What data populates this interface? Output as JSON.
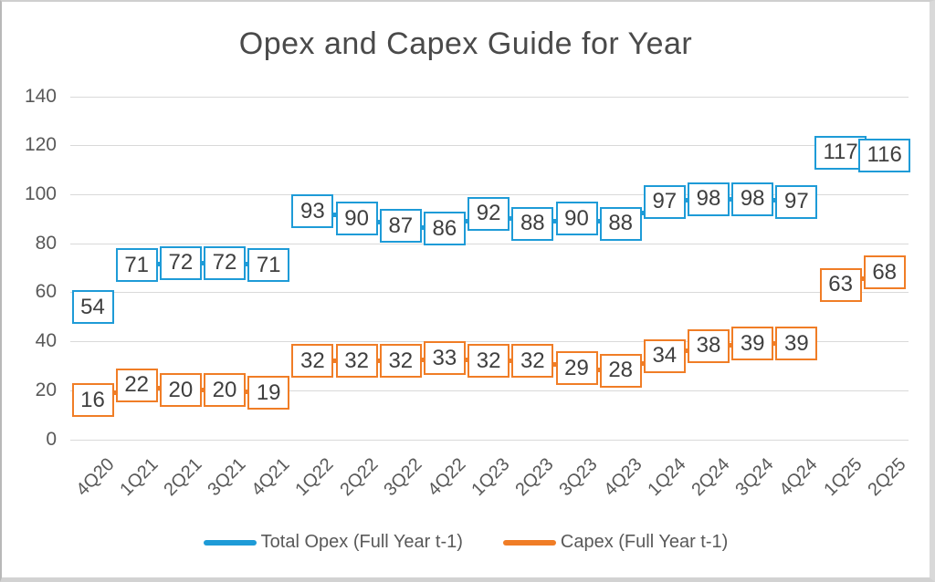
{
  "title": "Opex and Capex Guide for Year",
  "chart_data": {
    "type": "line",
    "title": "Opex and Capex Guide for Year",
    "categories": [
      "4Q20",
      "1Q21",
      "2Q21",
      "3Q21",
      "4Q21",
      "1Q22",
      "2Q22",
      "3Q22",
      "4Q22",
      "1Q23",
      "2Q23",
      "3Q23",
      "4Q23",
      "1Q24",
      "2Q24",
      "3Q24",
      "4Q24",
      "1Q25",
      "2Q25"
    ],
    "series": [
      {
        "name": "Total Opex (Full Year t-1)",
        "color": "#1e9bd7",
        "values": [
          54,
          71,
          72,
          72,
          71,
          93,
          90,
          87,
          86,
          92,
          88,
          90,
          88,
          97,
          98,
          98,
          97,
          117,
          116
        ]
      },
      {
        "name": "Capex (Full Year t-1)",
        "color": "#f07d26",
        "values": [
          16,
          22,
          20,
          20,
          19,
          32,
          32,
          32,
          33,
          32,
          32,
          29,
          28,
          34,
          38,
          39,
          39,
          63,
          68
        ]
      }
    ],
    "y_ticks": [
      0,
      20,
      40,
      60,
      80,
      100,
      120,
      140
    ],
    "ylim": [
      0,
      140
    ],
    "grid": true,
    "legend_position": "bottom",
    "data_labels": "boxed-values",
    "label_text_color": "#3f3f3f",
    "axis_text_color": "#595959",
    "gridline_color": "#d9d9d9"
  }
}
